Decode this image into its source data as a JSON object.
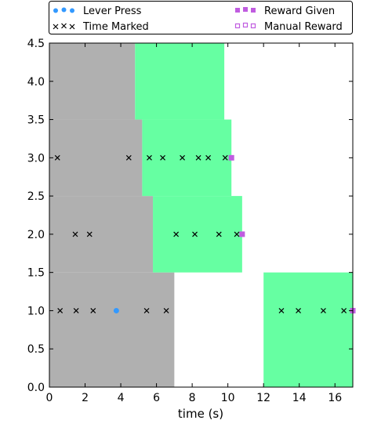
{
  "chart_data": {
    "type": "scatter",
    "xlabel": "time (s)",
    "ylabel": "",
    "xlim": [
      0,
      17
    ],
    "ylim": [
      0,
      4.5
    ],
    "x_ticks": [
      0,
      2,
      4,
      6,
      8,
      10,
      12,
      14,
      16
    ],
    "y_ticks": [
      0.0,
      0.5,
      1.0,
      1.5,
      2.0,
      2.5,
      3.0,
      3.5,
      4.0,
      4.5
    ],
    "grid": false,
    "legend_position": "above plot, two columns",
    "legend": [
      {
        "label": "Lever Press",
        "series": "lever_press"
      },
      {
        "label": "Reward Given",
        "series": "reward_given"
      },
      {
        "label": "Time Marked",
        "series": "time_marked"
      },
      {
        "label": "Manual Reward",
        "series": "manual_reward"
      }
    ],
    "regions": [
      {
        "color": "#b0b0b0",
        "x0": 0,
        "x1": 4.8,
        "y0": 3.5,
        "y1": 4.5
      },
      {
        "color": "#b0b0b0",
        "x0": 0,
        "x1": 5.2,
        "y0": 2.5,
        "y1": 3.5
      },
      {
        "color": "#b0b0b0",
        "x0": 0,
        "x1": 5.8,
        "y0": 1.5,
        "y1": 2.5
      },
      {
        "color": "#b0b0b0",
        "x0": 0,
        "x1": 7.0,
        "y0": 0,
        "y1": 1.5
      },
      {
        "color": "#66ffa2",
        "x0": 4.8,
        "x1": 9.8,
        "y0": 3.5,
        "y1": 4.5
      },
      {
        "color": "#66ffa2",
        "x0": 5.2,
        "x1": 10.2,
        "y0": 2.5,
        "y1": 3.5
      },
      {
        "color": "#66ffa2",
        "x0": 5.8,
        "x1": 10.8,
        "y0": 1.5,
        "y1": 2.5
      },
      {
        "color": "#66ffa2",
        "x0": 12.0,
        "x1": 17.0,
        "y0": 0,
        "y1": 1.5
      }
    ],
    "series": [
      {
        "name": "Lever Press",
        "key": "lever_press",
        "marker": "circle",
        "color": "#3399ff",
        "points": [
          [
            3.75,
            1.0
          ]
        ]
      },
      {
        "name": "Time Marked",
        "key": "time_marked",
        "marker": "x",
        "color": "#000000",
        "points": [
          [
            0.45,
            3.0
          ],
          [
            4.45,
            3.0
          ],
          [
            5.6,
            3.0
          ],
          [
            6.35,
            3.0
          ],
          [
            7.45,
            3.0
          ],
          [
            8.35,
            3.0
          ],
          [
            8.9,
            3.0
          ],
          [
            9.85,
            3.0
          ],
          [
            1.45,
            2.0
          ],
          [
            2.25,
            2.0
          ],
          [
            7.1,
            2.0
          ],
          [
            8.15,
            2.0
          ],
          [
            9.5,
            2.0
          ],
          [
            10.5,
            2.0
          ],
          [
            0.6,
            1.0
          ],
          [
            1.5,
            1.0
          ],
          [
            2.45,
            1.0
          ],
          [
            5.45,
            1.0
          ],
          [
            6.55,
            1.0
          ],
          [
            13.0,
            1.0
          ],
          [
            13.95,
            1.0
          ],
          [
            15.35,
            1.0
          ],
          [
            16.5,
            1.0
          ]
        ]
      },
      {
        "name": "Reward Given",
        "key": "reward_given",
        "marker": "square",
        "color": "#c05ce0",
        "points": [
          [
            10.2,
            3.0
          ],
          [
            10.8,
            2.0
          ],
          [
            17.0,
            1.0
          ]
        ]
      },
      {
        "name": "Manual Reward",
        "key": "manual_reward",
        "marker": "square-open",
        "color": "#c05ce0",
        "points": []
      }
    ]
  }
}
